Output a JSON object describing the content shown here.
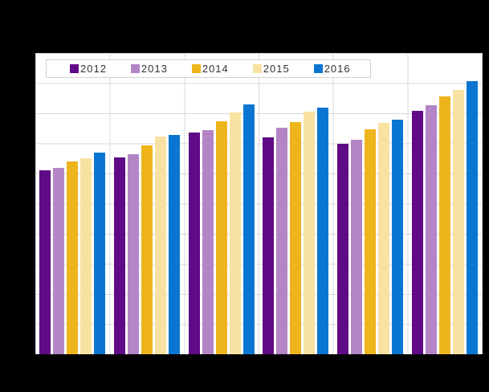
{
  "colors": {
    "background": "#000000",
    "plot_background": "#ffffff",
    "gridline": "#d8d8d8",
    "legend_border": "#d0d0d0",
    "text": "#333333"
  },
  "chart_data": {
    "type": "bar",
    "title": "",
    "xlabel": "",
    "ylabel": "",
    "categories": [
      "",
      "",
      "",
      "",
      "",
      ""
    ],
    "series": [
      {
        "name": "2012",
        "color": "#5F0A87",
        "values": [
          61.1,
          65.3,
          73.5,
          72.1,
          69.8,
          80.9
        ]
      },
      {
        "name": "2013",
        "color": "#B384C6",
        "values": [
          61.9,
          66.3,
          74.4,
          75.3,
          71.3,
          82.7
        ]
      },
      {
        "name": "2014",
        "color": "#EDB41C",
        "values": [
          63.9,
          69.3,
          77.4,
          77.1,
          74.7,
          85.6
        ]
      },
      {
        "name": "2015",
        "color": "#F7E2A2",
        "values": [
          65.1,
          72.3,
          80.2,
          80.5,
          76.9,
          87.7
        ]
      },
      {
        "name": "2016",
        "color": "#0B76D1",
        "values": [
          66.9,
          72.9,
          82.9,
          81.9,
          77.9,
          90.7
        ]
      }
    ],
    "ylim": [
      0,
      100
    ],
    "gridline_interval": 10,
    "grid": true,
    "legend_position": "top-left-inside",
    "axis_tick_labels_visible": false
  }
}
